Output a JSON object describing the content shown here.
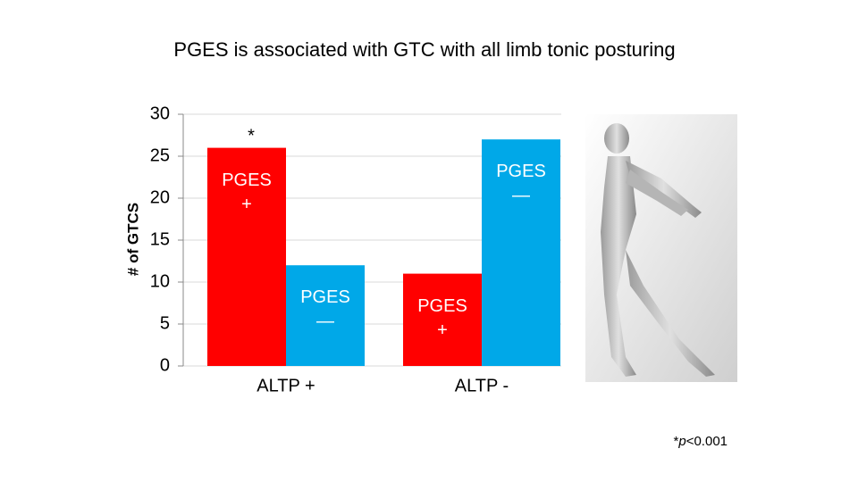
{
  "chart_data": {
    "type": "bar",
    "title": "PGES is associated with GTC with all limb tonic posturing",
    "y_label": "# of GTCS",
    "categories": [
      "ALTP +",
      "ALTP -"
    ],
    "series": [
      {
        "name": "PGES\n+",
        "color": "#ff0000",
        "values": [
          26,
          11
        ]
      },
      {
        "name": "PGES\n—",
        "color": "#00a8e8",
        "values": [
          12,
          27
        ]
      }
    ],
    "ylim": [
      0,
      30
    ],
    "yticks": [
      0,
      5,
      10,
      15,
      20,
      25,
      30
    ],
    "grid": true,
    "annotation": "*",
    "footnote": [
      "*",
      "p",
      "<0.001"
    ]
  }
}
